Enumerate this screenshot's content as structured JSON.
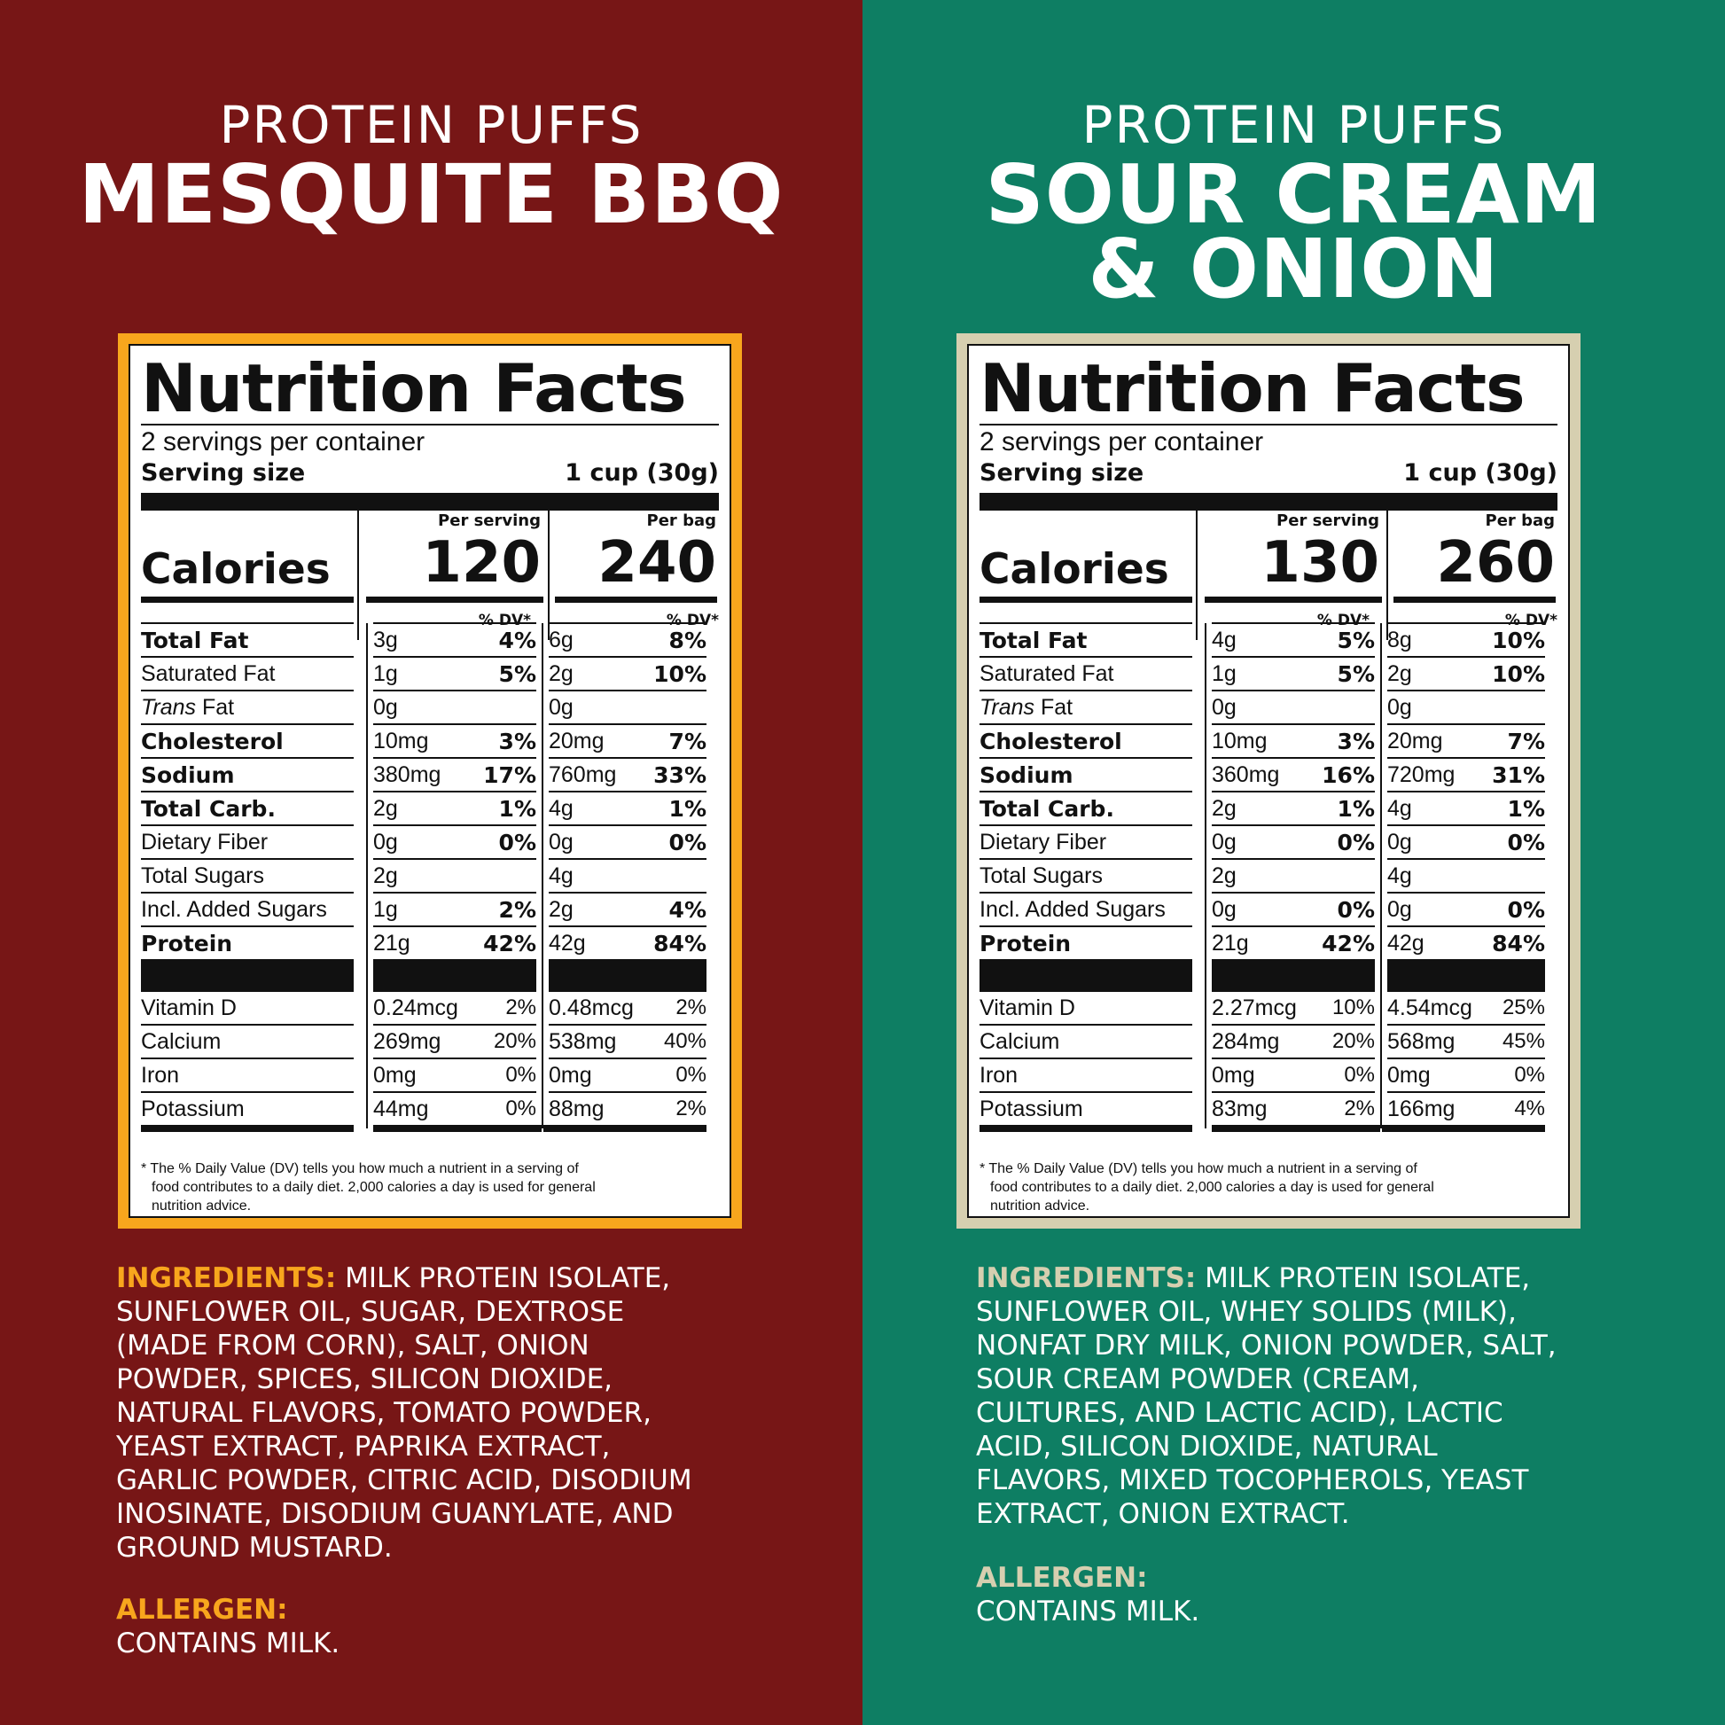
{
  "colors": {
    "left_bg": "#771616",
    "left_accent": "#f8a61d",
    "right_bg": "#0e7e63",
    "right_accent": "#d6cfb0"
  },
  "left": {
    "brand": "PROTEIN PUFFS",
    "flavor_line1": "MESQUITE BBQ",
    "flavor_line2": "",
    "label": {
      "title": "Nutrition Facts",
      "servings": "2 servings per container",
      "serving_size_label": "Serving size",
      "serving_size_value": "1 cup (30g)",
      "calories_label": "Calories",
      "col1_head": "Per serving",
      "col2_head": "Per bag",
      "cal1": "120",
      "cal2": "240",
      "dv_head": "% DV*",
      "rows": [
        {
          "name": "Total Fat",
          "a1": "3g",
          "p1": "4%",
          "a2": "6g",
          "p2": "8%"
        },
        {
          "name": "Saturated Fat",
          "a1": "1g",
          "p1": "5%",
          "a2": "2g",
          "p2": "10%"
        },
        {
          "name_italic": "Trans",
          "name": " Fat",
          "a1": "0g",
          "p1": "",
          "a2": "0g",
          "p2": ""
        },
        {
          "name": "Cholesterol",
          "a1": "10mg",
          "p1": "3%",
          "a2": "20mg",
          "p2": "7%"
        },
        {
          "name": "Sodium",
          "a1": "380mg",
          "p1": "17%",
          "a2": "760mg",
          "p2": "33%"
        },
        {
          "name": "Total Carb.",
          "a1": "2g",
          "p1": "1%",
          "a2": "4g",
          "p2": "1%"
        },
        {
          "name": "Dietary Fiber",
          "a1": "0g",
          "p1": "0%",
          "a2": "0g",
          "p2": "0%"
        },
        {
          "name": "Total Sugars",
          "a1": "2g",
          "p1": "",
          "a2": "4g",
          "p2": ""
        },
        {
          "name": "Incl. Added Sugars",
          "a1": "1g",
          "p1": "2%",
          "a2": "2g",
          "p2": "4%"
        },
        {
          "name": "Protein",
          "a1": "21g",
          "p1": "42%",
          "a2": "42g",
          "p2": "84%"
        }
      ],
      "vitamins": [
        {
          "name": "Vitamin D",
          "a1": "0.24mcg",
          "p1": "2%",
          "a2": "0.48mcg",
          "p2": "2%"
        },
        {
          "name": "Calcium",
          "a1": "269mg",
          "p1": "20%",
          "a2": "538mg",
          "p2": "40%"
        },
        {
          "name": "Iron",
          "a1": "0mg",
          "p1": "0%",
          "a2": "0mg",
          "p2": "0%"
        },
        {
          "name": "Potassium",
          "a1": "44mg",
          "p1": "0%",
          "a2": "88mg",
          "p2": "2%"
        }
      ],
      "footnote_line1": "* The % Daily Value (DV) tells you how much a nutrient in a serving of",
      "footnote_line2": "food contributes to a daily diet. 2,000 calories a day is used for general",
      "footnote_line3": "nutrition advice."
    },
    "ingredients_head": "INGREDIENTS:",
    "ingredients_lines": [
      " MILK PROTEIN ISOLATE,",
      "SUNFLOWER OIL, SUGAR, DEXTROSE",
      "(MADE FROM CORN), SALT, ONION",
      "POWDER, SPICES, SILICON DIOXIDE,",
      "NATURAL FLAVORS, TOMATO POWDER,",
      "YEAST EXTRACT, PAPRIKA EXTRACT,",
      "GARLIC POWDER, CITRIC ACID, DISODIUM",
      "INOSINATE, DISODIUM GUANYLATE, AND",
      "GROUND MUSTARD."
    ],
    "allergen_head": "ALLERGEN:",
    "allergen_text": "CONTAINS MILK."
  },
  "right": {
    "brand": "PROTEIN PUFFS",
    "flavor_line1": "SOUR CREAM",
    "flavor_line2": "& ONION",
    "label": {
      "title": "Nutrition Facts",
      "servings": "2 servings per container",
      "serving_size_label": "Serving size",
      "serving_size_value": "1 cup (30g)",
      "calories_label": "Calories",
      "col1_head": "Per serving",
      "col2_head": "Per bag",
      "cal1": "130",
      "cal2": "260",
      "dv_head": "% DV*",
      "rows": [
        {
          "name": "Total Fat",
          "a1": "4g",
          "p1": "5%",
          "a2": "8g",
          "p2": "10%"
        },
        {
          "name": "Saturated Fat",
          "a1": "1g",
          "p1": "5%",
          "a2": "2g",
          "p2": "10%"
        },
        {
          "name_italic": "Trans",
          "name": " Fat",
          "a1": "0g",
          "p1": "",
          "a2": "0g",
          "p2": ""
        },
        {
          "name": "Cholesterol",
          "a1": "10mg",
          "p1": "3%",
          "a2": "20mg",
          "p2": "7%"
        },
        {
          "name": "Sodium",
          "a1": "360mg",
          "p1": "16%",
          "a2": "720mg",
          "p2": "31%"
        },
        {
          "name": "Total Carb.",
          "a1": "2g",
          "p1": "1%",
          "a2": "4g",
          "p2": "1%"
        },
        {
          "name": "Dietary Fiber",
          "a1": "0g",
          "p1": "0%",
          "a2": "0g",
          "p2": "0%"
        },
        {
          "name": "Total Sugars",
          "a1": "2g",
          "p1": "",
          "a2": "4g",
          "p2": ""
        },
        {
          "name": "Incl. Added Sugars",
          "a1": "0g",
          "p1": "0%",
          "a2": "0g",
          "p2": "0%"
        },
        {
          "name": "Protein",
          "a1": "21g",
          "p1": "42%",
          "a2": "42g",
          "p2": "84%"
        }
      ],
      "vitamins": [
        {
          "name": "Vitamin D",
          "a1": "2.27mcg",
          "p1": "10%",
          "a2": "4.54mcg",
          "p2": "25%"
        },
        {
          "name": "Calcium",
          "a1": "284mg",
          "p1": "20%",
          "a2": "568mg",
          "p2": "45%"
        },
        {
          "name": "Iron",
          "a1": "0mg",
          "p1": "0%",
          "a2": "0mg",
          "p2": "0%"
        },
        {
          "name": "Potassium",
          "a1": "83mg",
          "p1": "2%",
          "a2": "166mg",
          "p2": "4%"
        }
      ],
      "footnote_line1": "* The % Daily Value (DV) tells you how much a nutrient in a serving of",
      "footnote_line2": "food contributes to a daily diet. 2,000 calories a day is used for general",
      "footnote_line3": "nutrition advice."
    },
    "ingredients_head": "INGREDIENTS:",
    "ingredients_lines": [
      " MILK PROTEIN ISOLATE,",
      "SUNFLOWER OIL, WHEY SOLIDS (MILK),",
      "NONFAT DRY MILK, ONION POWDER, SALT,",
      "SOUR CREAM POWDER (CREAM,",
      "CULTURES, AND LACTIC ACID), LACTIC",
      "ACID, SILICON DIOXIDE, NATURAL",
      "FLAVORS, MIXED TOCOPHEROLS, YEAST",
      "EXTRACT, ONION EXTRACT."
    ],
    "allergen_head": "ALLERGEN:",
    "allergen_text": "CONTAINS MILK."
  }
}
